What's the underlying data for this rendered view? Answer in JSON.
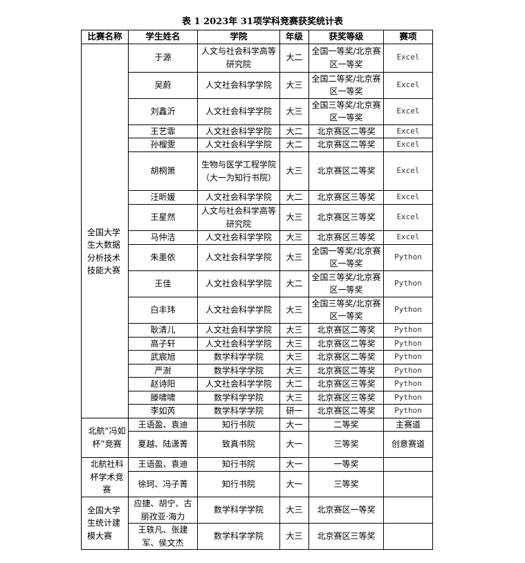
{
  "title": "表 1  2023年 31项学科竞赛获奖统计表",
  "headers": [
    "比赛名称",
    "学生姓名",
    "学院",
    "年级",
    "获奖等级",
    "赛项"
  ],
  "groups": [
    {
      "competition": "全国大学生大数据分析技术技能大赛",
      "rows": [
        {
          "name": "于源",
          "college": "人文与社会科学高等研究院",
          "grade": "大二",
          "award": "全国一等奖/北京赛区一等奖",
          "event": "Excel"
        },
        {
          "name": "吴蔚",
          "college": "人文社会科学学院",
          "grade": "大三",
          "award": "全国二等奖/北京赛区一等奖",
          "event": "Excel"
        },
        {
          "name": "刘鑫沂",
          "college": "人文社会科学学院",
          "grade": "大三",
          "award": "全国三等奖/北京赛区一等奖",
          "event": "Excel"
        },
        {
          "name": "王艺霏",
          "college": "人文社会科学学院",
          "grade": "大二",
          "award": "北京赛区二等奖",
          "event": "Excel"
        },
        {
          "name": "孙榴雯",
          "college": "人文社会科学学院",
          "grade": "大二",
          "award": "北京赛区二等奖",
          "event": "Excel"
        },
        {
          "name": "胡桐箫",
          "college": "生物与医学工程学院（大一为知行书院）",
          "grade": "大三",
          "award": "北京赛区二等奖",
          "event": "Excel"
        },
        {
          "name": "汪昕媛",
          "college": "人文社会科学学院",
          "grade": "大二",
          "award": "北京赛区三等奖",
          "event": "Excel"
        },
        {
          "name": "王星然",
          "college": "人文与社会科学高等研究院",
          "grade": "大三",
          "award": "北京赛区三等奖",
          "event": "Excel"
        },
        {
          "name": "马仲洁",
          "college": "人文社会科学学院",
          "grade": "大三",
          "award": "北京赛区三等奖",
          "event": "Excel"
        },
        {
          "name": "朱墨依",
          "college": "人文社会科学学院",
          "grade": "大三",
          "award": "全国一等奖/北京赛区一等奖",
          "event": "Python"
        },
        {
          "name": "王佳",
          "college": "人文社会科学学院",
          "grade": "大二",
          "award": "全国三等奖/北京赛区一等奖",
          "event": "Python"
        },
        {
          "name": "白丰玮",
          "college": "人文社会科学学院",
          "grade": "大三",
          "award": "全国三等奖/北京赛区一等奖",
          "event": "Python"
        },
        {
          "name": "耿清儿",
          "college": "人文社会科学学院",
          "grade": "大三",
          "award": "北京赛区二等奖",
          "event": "Python"
        },
        {
          "name": "高子轩",
          "college": "人文社会科学学院",
          "grade": "大三",
          "award": "北京赛区二等奖",
          "event": "Python"
        },
        {
          "name": "武宸旭",
          "college": "数学科学学院",
          "grade": "大三",
          "award": "北京赛区二等奖",
          "event": "Python"
        },
        {
          "name": "严澍",
          "college": "数学科学学院",
          "grade": "大三",
          "award": "北京赛区二等奖",
          "event": "Python"
        },
        {
          "name": "赵诗阳",
          "college": "人文社会科学学院",
          "grade": "大二",
          "award": "北京赛区三等奖",
          "event": "Python"
        },
        {
          "name": "滕啸啸",
          "college": "数学科学学院",
          "grade": "大三",
          "award": "北京赛区三等奖",
          "event": "Python"
        },
        {
          "name": "李如芮",
          "college": "数学科学学院",
          "grade": "研一",
          "award": "北京赛区二等奖",
          "event": "Python"
        }
      ]
    },
    {
      "competition": "北航“冯如杯”竞赛",
      "rows": [
        {
          "name": "王语盈、袁迪",
          "college": "知行书院",
          "grade": "大一",
          "award": "二等奖",
          "event": "主赛道"
        },
        {
          "name": "夏越、陆潇菁",
          "college": "致真书院",
          "grade": "大一",
          "award": "三等奖",
          "event": "创意赛道"
        }
      ]
    },
    {
      "competition": "北航社科杯学术竞赛",
      "rows": [
        {
          "name": "王语盈、袁迪",
          "college": "知行书院",
          "grade": "大一",
          "award": "一等奖",
          "event": ""
        },
        {
          "name": "徐珂、冯子菁",
          "college": "知行书院",
          "grade": "大一",
          "award": "三等奖",
          "event": ""
        }
      ]
    },
    {
      "competition": "全国大学生统计建模大赛",
      "rows": [
        {
          "name": "应捷、胡宁、古丽孜亚·海力",
          "college": "数学科学学院",
          "grade": "大三",
          "award": "北京赛区一等奖",
          "event": ""
        },
        {
          "name": "王轶凡、张建军、侯文杰",
          "college": "数学科学学院",
          "grade": "大三",
          "award": "北京赛区三等奖",
          "event": ""
        }
      ]
    }
  ]
}
